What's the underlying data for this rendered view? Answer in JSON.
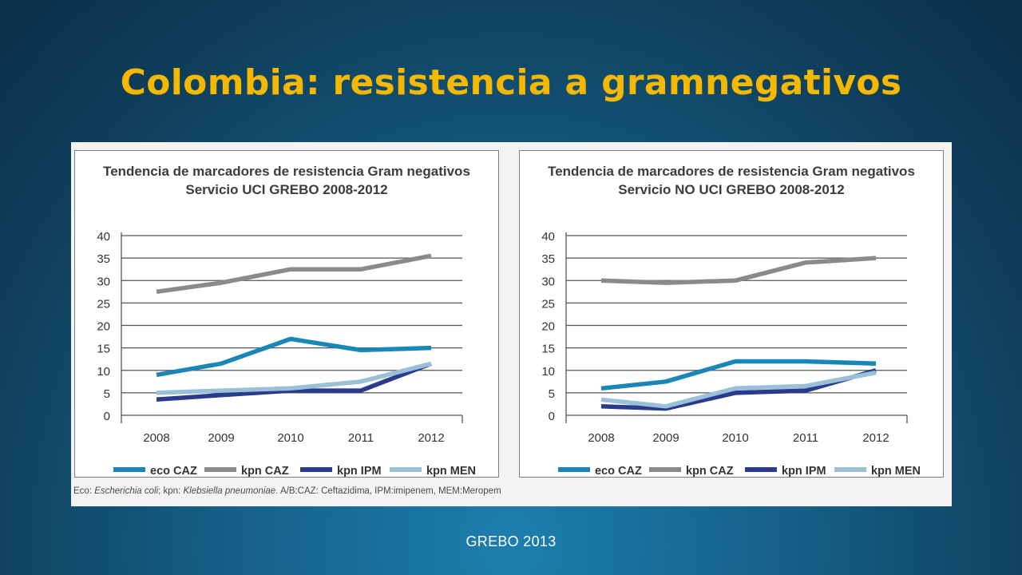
{
  "slide": {
    "title": "Colombia: resistencia a gramnegativos",
    "footer": "GREBO 2013"
  },
  "caption": {
    "eco_label": "Eco:",
    "eco_name": "Escherichia coli",
    "kpn_label": "; kpn:",
    "kpn_name": "Klebsiella pneumoniae.",
    "rest": " A/B:CAZ: Ceftazidima, IPM:imipenem, MEM:Meropem"
  },
  "colors": {
    "eco CAZ": "#1a86b8",
    "kpn CAZ": "#8a8a8c",
    "kpn IPM": "#2a3a8c",
    "kpn MEN": "#9ac0d8"
  },
  "chart_data": [
    {
      "type": "line",
      "title_line1": "Tendencia de marcadores de resistencia Gram negativos",
      "title_line2": "Servicio UCI  GREBO 2008-2012",
      "categories": [
        "2008",
        "2009",
        "2010",
        "2011",
        "2012"
      ],
      "ylim": [
        0,
        40
      ],
      "yticks": [
        "0",
        "5",
        "10",
        "15",
        "20",
        "25",
        "30",
        "35",
        "40"
      ],
      "grid": true,
      "legend_position": "bottom",
      "series": [
        {
          "name": "eco CAZ",
          "values": [
            9,
            11.5,
            17,
            14.5,
            15
          ]
        },
        {
          "name": "kpn CAZ",
          "values": [
            27.5,
            29.5,
            32.5,
            32.5,
            35.5
          ]
        },
        {
          "name": "kpn IPM",
          "values": [
            3.5,
            4.5,
            5.5,
            5.5,
            11.5
          ]
        },
        {
          "name": "kpn MEN",
          "values": [
            5,
            5.5,
            6,
            7.5,
            11.5
          ]
        }
      ]
    },
    {
      "type": "line",
      "title_line1": "Tendencia de marcadores de resistencia Gram negativos",
      "title_line2": "Servicio NO UCI  GREBO 2008-2012",
      "categories": [
        "2008",
        "2009",
        "2010",
        "2011",
        "2012"
      ],
      "ylim": [
        0,
        40
      ],
      "yticks": [
        "0",
        "5",
        "10",
        "15",
        "20",
        "25",
        "30",
        "35",
        "40"
      ],
      "grid": true,
      "legend_position": "bottom",
      "series": [
        {
          "name": "eco CAZ",
          "values": [
            6,
            7.5,
            12,
            12,
            11.5
          ]
        },
        {
          "name": "kpn CAZ",
          "values": [
            30,
            29.5,
            30,
            34,
            35
          ]
        },
        {
          "name": "kpn IPM",
          "values": [
            2,
            1.5,
            5,
            5.5,
            10
          ]
        },
        {
          "name": "kpn MEN",
          "values": [
            3.5,
            2,
            6,
            6.5,
            9.5
          ]
        }
      ]
    }
  ]
}
